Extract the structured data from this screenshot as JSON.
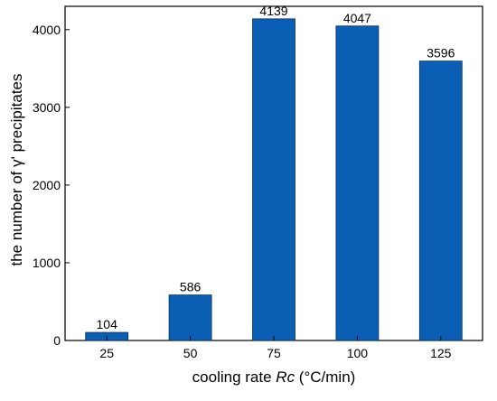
{
  "chart_data": {
    "type": "bar",
    "title": "",
    "xlabel": "cooling rate ",
    "xlabel_italic": "Rc",
    "xlabel_unit": " (°C/min)",
    "ylabel": "the number of γ' precipitates",
    "categories": [
      "25",
      "50",
      "75",
      "100",
      "125"
    ],
    "values": [
      104,
      586,
      4139,
      4047,
      3596
    ],
    "data_labels": [
      "104",
      "586",
      "4139",
      "4047",
      "3596"
    ],
    "ylim": [
      0,
      4300
    ],
    "yticks": [
      0,
      1000,
      2000,
      3000,
      4000
    ],
    "ytick_labels": [
      "0",
      "1000",
      "2000",
      "3000",
      "4000"
    ],
    "grid": false,
    "legend": "none",
    "bar_color": "#0a5fb4"
  }
}
